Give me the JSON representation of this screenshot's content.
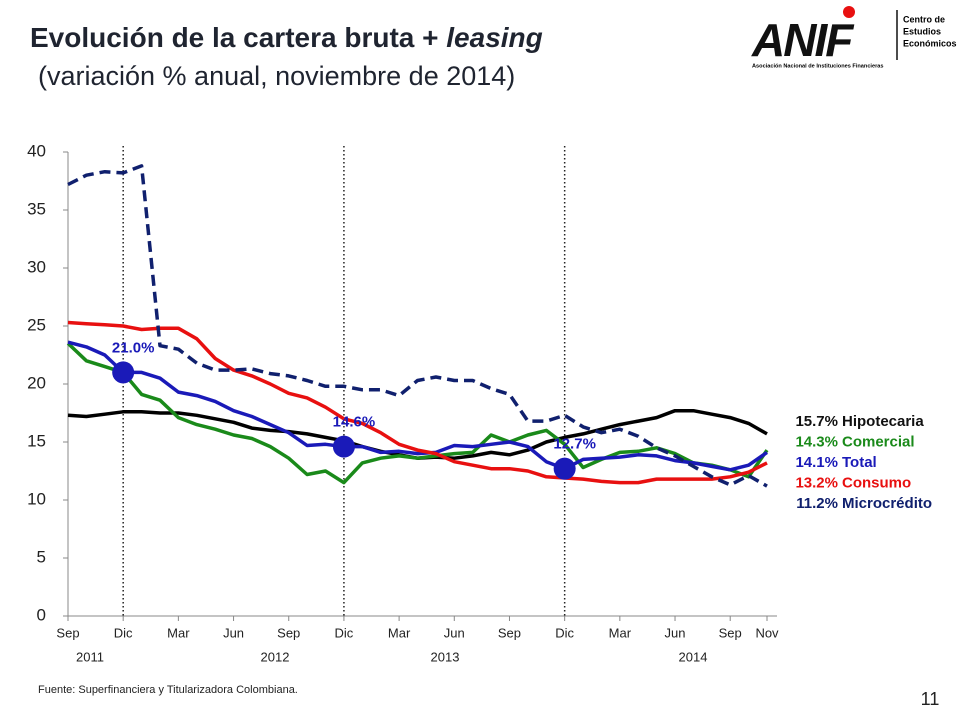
{
  "chart_data": {
    "type": "line",
    "title": "Evolución de la cartera bruta + ",
    "title_emphasis": "leasing",
    "subtitle": "(variación % anual, noviembre de 2014)",
    "categories": [
      "Sep",
      null,
      null,
      "Dic",
      null,
      null,
      "Mar",
      null,
      null,
      "Jun",
      null,
      null,
      "Sep",
      null,
      null,
      "Dic",
      null,
      null,
      "Mar",
      null,
      null,
      "Jun",
      null,
      null,
      "Sep",
      null,
      null,
      "Dic",
      null,
      null,
      "Mar",
      null,
      null,
      "Jun",
      null,
      null,
      "Sep",
      null,
      "Nov"
    ],
    "year_labels": [
      "2011",
      "2012",
      "2013",
      "2014"
    ],
    "ylim": [
      0,
      40
    ],
    "yticks": [
      0,
      5,
      10,
      15,
      20,
      25,
      30,
      35,
      40
    ],
    "grid": false,
    "series": [
      {
        "name": "Hipotecaria",
        "color": "#000000",
        "dashed": false,
        "values": [
          17.3,
          17.2,
          17.4,
          17.6,
          17.6,
          17.5,
          17.5,
          17.3,
          17.0,
          16.7,
          16.2,
          16.0,
          15.9,
          15.7,
          15.4,
          15.1,
          14.6,
          14.2,
          13.9,
          13.6,
          13.7,
          13.6,
          13.8,
          14.1,
          13.9,
          14.3,
          15.0,
          15.4,
          15.7,
          16.1,
          16.5,
          16.8,
          17.1,
          17.7,
          17.7,
          17.4,
          17.1,
          16.6,
          15.7
        ],
        "value_labels": [
          null,
          null,
          null,
          null,
          null,
          null,
          null,
          null,
          null,
          null,
          null,
          null,
          null,
          null,
          null,
          null,
          null,
          null,
          null,
          null,
          null,
          null,
          null,
          null,
          null,
          null,
          null,
          null,
          null,
          null,
          null,
          null,
          null,
          null,
          null,
          null,
          null,
          null,
          "15.7%"
        ]
      },
      {
        "name": "Comercial",
        "color": "#1a8a1a",
        "dashed": false,
        "values": [
          23.5,
          22.0,
          21.5,
          21.0,
          19.1,
          18.6,
          17.1,
          16.5,
          16.1,
          15.6,
          15.3,
          14.6,
          13.6,
          12.2,
          12.5,
          11.5,
          13.2,
          13.6,
          13.8,
          13.6,
          13.8,
          14.0,
          14.1,
          15.6,
          15.0,
          15.6,
          16.0,
          14.8,
          12.8,
          13.5,
          14.1,
          14.2,
          14.5,
          14.0,
          13.2,
          13.0,
          12.6,
          12.0,
          14.3
        ],
        "value_labels": [
          null,
          null,
          null,
          null,
          null,
          null,
          null,
          null,
          null,
          null,
          null,
          null,
          null,
          null,
          null,
          null,
          null,
          null,
          null,
          null,
          null,
          null,
          null,
          null,
          null,
          null,
          null,
          null,
          null,
          null,
          null,
          null,
          null,
          null,
          null,
          null,
          null,
          null,
          "14.3%"
        ]
      },
      {
        "name": "Total",
        "color": "#1a1ab8",
        "dashed": false,
        "values": [
          23.6,
          23.2,
          22.5,
          21.0,
          21.0,
          20.5,
          19.3,
          19.0,
          18.5,
          17.7,
          17.2,
          16.5,
          15.8,
          14.7,
          14.8,
          14.6,
          14.6,
          14.1,
          14.2,
          14.0,
          14.1,
          14.7,
          14.6,
          14.8,
          15.0,
          14.6,
          13.3,
          12.7,
          13.5,
          13.6,
          13.7,
          13.9,
          13.8,
          13.4,
          13.2,
          12.9,
          12.6,
          13.0,
          14.1
        ],
        "value_labels": [
          null,
          null,
          null,
          "21.0%",
          null,
          null,
          null,
          null,
          null,
          null,
          null,
          null,
          null,
          null,
          null,
          "14.6%",
          null,
          null,
          null,
          null,
          null,
          null,
          null,
          null,
          null,
          null,
          null,
          "12.7%",
          null,
          null,
          null,
          null,
          null,
          null,
          null,
          null,
          null,
          null,
          "14.1%"
        ]
      },
      {
        "name": "Consumo",
        "color": "#e81010",
        "dashed": false,
        "values": [
          25.3,
          25.2,
          25.1,
          25.0,
          24.7,
          24.8,
          24.8,
          23.9,
          22.2,
          21.2,
          20.7,
          20.0,
          19.2,
          18.8,
          18.0,
          17.0,
          16.6,
          15.8,
          14.8,
          14.3,
          14.0,
          13.3,
          13.0,
          12.7,
          12.7,
          12.5,
          12.0,
          11.9,
          11.8,
          11.6,
          11.5,
          11.5,
          11.8,
          11.8,
          11.8,
          11.8,
          12.0,
          12.4,
          13.2
        ],
        "value_labels": [
          null,
          null,
          null,
          null,
          null,
          null,
          null,
          null,
          null,
          null,
          null,
          null,
          null,
          null,
          null,
          null,
          null,
          null,
          null,
          null,
          null,
          null,
          null,
          null,
          null,
          null,
          null,
          null,
          null,
          null,
          null,
          null,
          null,
          null,
          null,
          null,
          null,
          null,
          "13.2%"
        ]
      },
      {
        "name": "Microcrédito",
        "color": "#10206e",
        "dashed": true,
        "values": [
          37.2,
          38.0,
          38.3,
          38.2,
          38.8,
          23.3,
          23.0,
          21.8,
          21.2,
          21.2,
          21.3,
          20.9,
          20.7,
          20.3,
          19.8,
          19.8,
          19.5,
          19.5,
          19.0,
          20.3,
          20.6,
          20.3,
          20.3,
          19.6,
          19.1,
          16.8,
          16.8,
          17.3,
          16.3,
          15.8,
          16.1,
          15.5,
          14.5,
          13.8,
          12.9,
          12.0,
          11.3,
          12.1,
          11.2
        ],
        "value_labels": [
          null,
          null,
          null,
          null,
          null,
          null,
          null,
          null,
          null,
          null,
          null,
          null,
          null,
          null,
          null,
          null,
          null,
          null,
          null,
          null,
          null,
          null,
          null,
          null,
          null,
          null,
          null,
          null,
          null,
          null,
          null,
          null,
          null,
          null,
          null,
          null,
          null,
          null,
          "11.2%"
        ]
      }
    ]
  },
  "logo": {
    "name": "ANIF",
    "unit": [
      "Centro de",
      "Estudios",
      "Económicos"
    ],
    "full_name": "Asociación Nacional de Instituciones Financieras"
  },
  "source": "Fuente: Superfinanciera y Titularizadora Colombiana.",
  "page_number": "11"
}
